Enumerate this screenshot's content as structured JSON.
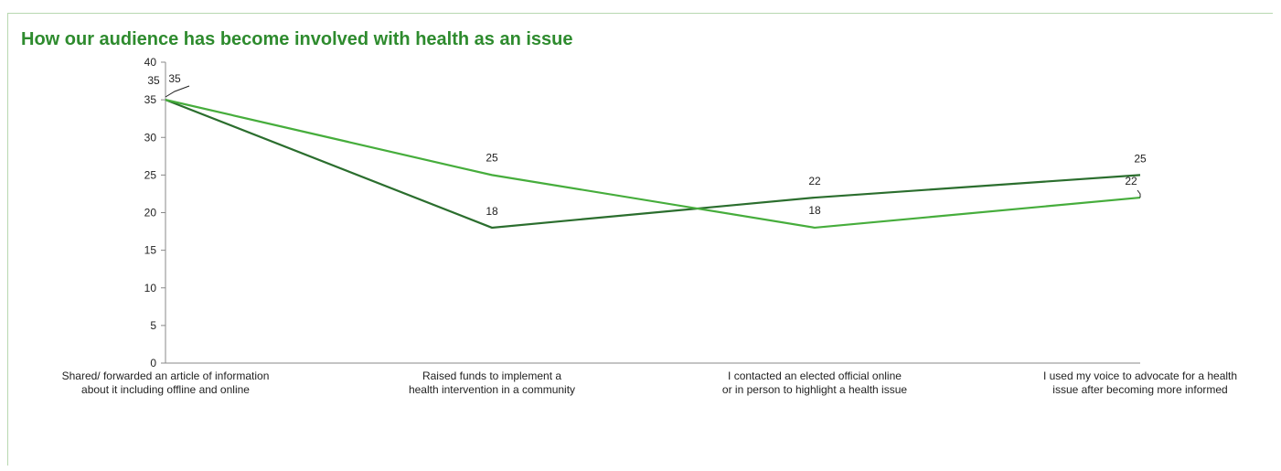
{
  "chart_data": {
    "type": "line",
    "title": "How our audience has become involved with health as an issue",
    "categories": [
      [
        "Shared/ forwarded an article of information",
        "about it including offline and online"
      ],
      [
        "Raised funds to implement a",
        "health intervention in a community"
      ],
      [
        "I contacted an elected official online",
        "or in person to highlight a health issue"
      ],
      [
        "I used my voice to advocate for a health",
        "issue after becoming more informed"
      ]
    ],
    "series": [
      {
        "values": [
          35,
          18,
          22,
          25
        ],
        "color": "#2b6e2e"
      },
      {
        "values": [
          35,
          25,
          18,
          22
        ],
        "color": "#46ad3c"
      }
    ],
    "ylim": [
      0,
      40
    ],
    "yticks": [
      "0",
      "5",
      "10",
      "15",
      "20",
      "25",
      "30",
      "35",
      "40"
    ],
    "grid": false,
    "legend": "none"
  }
}
